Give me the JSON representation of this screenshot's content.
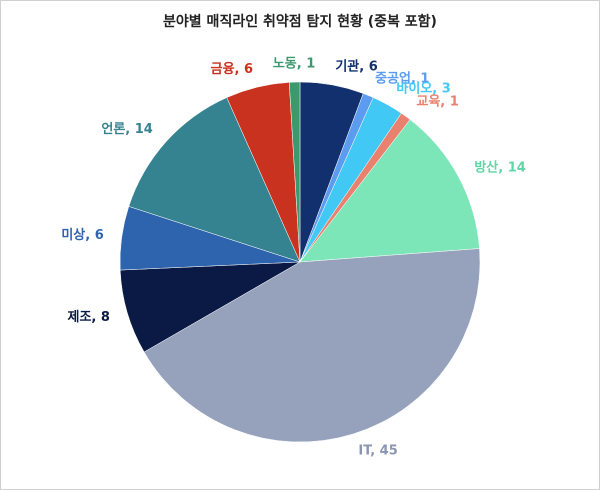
{
  "chart_data": {
    "type": "pie",
    "title": "분야별 매직라인 취약점 탐지 현황 (중복 포함)",
    "categories": [
      "기관",
      "중공업",
      "바이오",
      "교육",
      "방산",
      "IT",
      "제조",
      "미상",
      "언론",
      "금융",
      "노동"
    ],
    "values": [
      6,
      1,
      3,
      1,
      14,
      45,
      8,
      6,
      14,
      6,
      1
    ],
    "value_labels": [
      "기관, 6",
      "중공업, 1",
      "바이오, 3",
      "교육, 1",
      "방산, 14",
      "IT, 45",
      "제조, 8",
      "미상, 6",
      "언론, 14",
      "금융, 6",
      "노동, 1"
    ],
    "colors": [
      "#12306e",
      "#5b9bf0",
      "#41c8f5",
      "#e8826e",
      "#7de6b9",
      "#96a2bc",
      "#0a1a45",
      "#2e64ad",
      "#358391",
      "#c8321e",
      "#3a9a6e"
    ],
    "label_colors": [
      "#12306e",
      "#5b9bf0",
      "#41c8f5",
      "#e8826e",
      "#5fd6a6",
      "#8a96b0",
      "#0a1a45",
      "#2e64ad",
      "#358391",
      "#c8321e",
      "#3a9a6e"
    ]
  }
}
